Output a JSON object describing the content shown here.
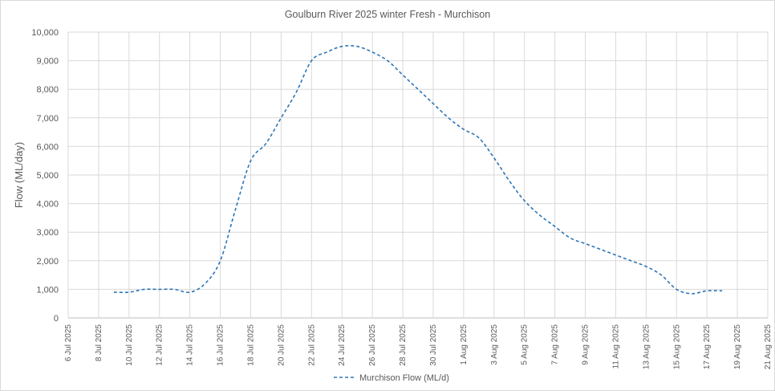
{
  "chart_data": {
    "type": "line",
    "title": "Goulburn River 2025 winter Fresh - Murchison",
    "xlabel": "",
    "ylabel": "Flow (ML/day)",
    "ylim": [
      0,
      10000
    ],
    "y_ticks": [
      0,
      1000,
      2000,
      3000,
      4000,
      5000,
      6000,
      7000,
      8000,
      9000,
      10000
    ],
    "y_tick_labels": [
      "0",
      "1,000",
      "2,000",
      "3,000",
      "4,000",
      "5,000",
      "6,000",
      "7,000",
      "8,000",
      "9,000",
      "10,000"
    ],
    "x_range": [
      "2025-07-06",
      "2025-08-21"
    ],
    "x_ticks": [
      "2025-07-06",
      "2025-07-08",
      "2025-07-10",
      "2025-07-12",
      "2025-07-14",
      "2025-07-16",
      "2025-07-18",
      "2025-07-20",
      "2025-07-22",
      "2025-07-24",
      "2025-07-26",
      "2025-07-28",
      "2025-07-30",
      "2025-08-01",
      "2025-08-03",
      "2025-08-05",
      "2025-08-07",
      "2025-08-09",
      "2025-08-11",
      "2025-08-13",
      "2025-08-15",
      "2025-08-17",
      "2025-08-19",
      "2025-08-21"
    ],
    "x_tick_labels": [
      "6 Jul 2025",
      "8 Jul 2025",
      "10 Jul 2025",
      "12 Jul 2025",
      "14 Jul 2025",
      "16 Jul 2025",
      "18 Jul 2025",
      "20 Jul 2025",
      "22 Jul 2025",
      "24 Jul 2025",
      "26 Jul 2025",
      "28 Jul 2025",
      "30 Jul 2025",
      "1 Aug 2025",
      "3 Aug 2025",
      "5 Aug 2025",
      "7 Aug 2025",
      "9 Aug 2025",
      "11 Aug 2025",
      "13 Aug 2025",
      "15 Aug 2025",
      "17 Aug 2025",
      "19 Aug 2025",
      "21 Aug 2025"
    ],
    "grid": true,
    "legend_position": "bottom",
    "series": [
      {
        "name": "Murchison Flow (ML/d)",
        "color": "#2E75B6",
        "line_style": "dashed",
        "x": [
          "2025-07-09",
          "2025-07-10",
          "2025-07-11",
          "2025-07-12",
          "2025-07-13",
          "2025-07-14",
          "2025-07-15",
          "2025-07-16",
          "2025-07-17",
          "2025-07-18",
          "2025-07-19",
          "2025-07-20",
          "2025-07-21",
          "2025-07-22",
          "2025-07-23",
          "2025-07-24",
          "2025-07-25",
          "2025-07-26",
          "2025-07-27",
          "2025-07-28",
          "2025-07-29",
          "2025-07-30",
          "2025-07-31",
          "2025-08-01",
          "2025-08-02",
          "2025-08-03",
          "2025-08-04",
          "2025-08-05",
          "2025-08-06",
          "2025-08-07",
          "2025-08-08",
          "2025-08-09",
          "2025-08-10",
          "2025-08-11",
          "2025-08-12",
          "2025-08-13",
          "2025-08-14",
          "2025-08-15",
          "2025-08-16",
          "2025-08-17",
          "2025-08-18"
        ],
        "values": [
          900,
          900,
          1000,
          1000,
          1000,
          900,
          1200,
          2000,
          3800,
          5500,
          6100,
          7000,
          7900,
          9000,
          9300,
          9500,
          9500,
          9300,
          9000,
          8500,
          8000,
          7500,
          7000,
          6600,
          6300,
          5600,
          4800,
          4100,
          3600,
          3200,
          2800,
          2600,
          2400,
          2200,
          2000,
          1800,
          1500,
          1000,
          850,
          950,
          950
        ]
      }
    ]
  }
}
